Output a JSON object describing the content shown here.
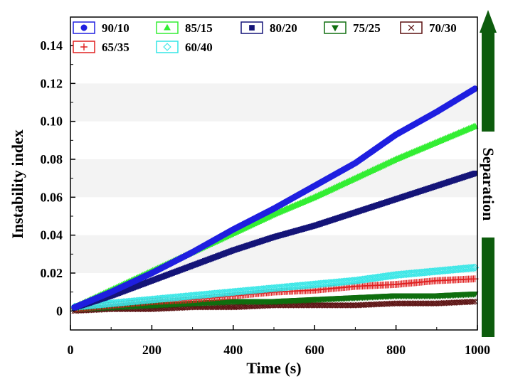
{
  "chart_data": {
    "type": "scatter",
    "title": "",
    "xlabel": "Time  (s)",
    "ylabel": "Instability index",
    "xlim": [
      0,
      1000
    ],
    "ylim": [
      -0.01,
      0.155
    ],
    "xticks": [
      0,
      200,
      400,
      600,
      800,
      1000
    ],
    "yticks": [
      0,
      0.02,
      0.04,
      0.06,
      0.08,
      0.1,
      0.12,
      0.14
    ],
    "ytick_labels": [
      "0",
      "0.02",
      "0.04",
      "0.06",
      "0.08",
      "0.10",
      "0.12",
      "0.14"
    ],
    "grid": "alternating horizontal bands",
    "legend_position": "top",
    "annotation": "Separation",
    "series": [
      {
        "name": "90/10",
        "color": "#1f1fe0",
        "marker": "circle",
        "x": [
          0,
          100,
          200,
          300,
          400,
          500,
          600,
          700,
          800,
          900,
          1000
        ],
        "y": [
          0.001,
          0.01,
          0.02,
          0.031,
          0.043,
          0.054,
          0.066,
          0.078,
          0.093,
          0.105,
          0.118
        ]
      },
      {
        "name": "85/15",
        "color": "#33ee33",
        "marker": "triangle-up",
        "x": [
          0,
          100,
          200,
          300,
          400,
          500,
          600,
          700,
          800,
          900,
          1000
        ],
        "y": [
          0.001,
          0.011,
          0.021,
          0.031,
          0.041,
          0.051,
          0.06,
          0.07,
          0.08,
          0.089,
          0.098
        ]
      },
      {
        "name": "80/20",
        "color": "#141478",
        "marker": "square",
        "x": [
          0,
          100,
          200,
          300,
          400,
          500,
          600,
          700,
          800,
          900,
          1000
        ],
        "y": [
          0.001,
          0.008,
          0.016,
          0.024,
          0.032,
          0.039,
          0.045,
          0.052,
          0.059,
          0.066,
          0.073
        ]
      },
      {
        "name": "75/25",
        "color": "#0f6e0f",
        "marker": "triangle-down",
        "x": [
          0,
          100,
          200,
          300,
          400,
          500,
          600,
          700,
          800,
          900,
          1000
        ],
        "y": [
          0.001,
          0.002,
          0.003,
          0.004,
          0.005,
          0.005,
          0.006,
          0.007,
          0.008,
          0.008,
          0.009
        ]
      },
      {
        "name": "70/30",
        "color": "#5a0f0f",
        "marker": "cross",
        "x": [
          0,
          100,
          200,
          300,
          400,
          500,
          600,
          700,
          800,
          900,
          1000
        ],
        "y": [
          0.0,
          0.001,
          0.001,
          0.002,
          0.002,
          0.003,
          0.003,
          0.003,
          0.004,
          0.004,
          0.005
        ]
      },
      {
        "name": "65/35",
        "color": "#e02020",
        "marker": "plus",
        "x": [
          0,
          100,
          200,
          300,
          400,
          500,
          600,
          700,
          800,
          900,
          1000
        ],
        "y": [
          0.001,
          0.003,
          0.005,
          0.006,
          0.008,
          0.01,
          0.011,
          0.013,
          0.014,
          0.016,
          0.017
        ]
      },
      {
        "name": "60/40",
        "color": "#33e6e6",
        "marker": "diamond",
        "x": [
          0,
          100,
          200,
          300,
          400,
          500,
          600,
          700,
          800,
          900,
          1000
        ],
        "y": [
          0.002,
          0.004,
          0.006,
          0.008,
          0.01,
          0.012,
          0.014,
          0.016,
          0.019,
          0.021,
          0.023
        ]
      }
    ]
  },
  "arrow": {
    "color": "#0d5c0d"
  }
}
